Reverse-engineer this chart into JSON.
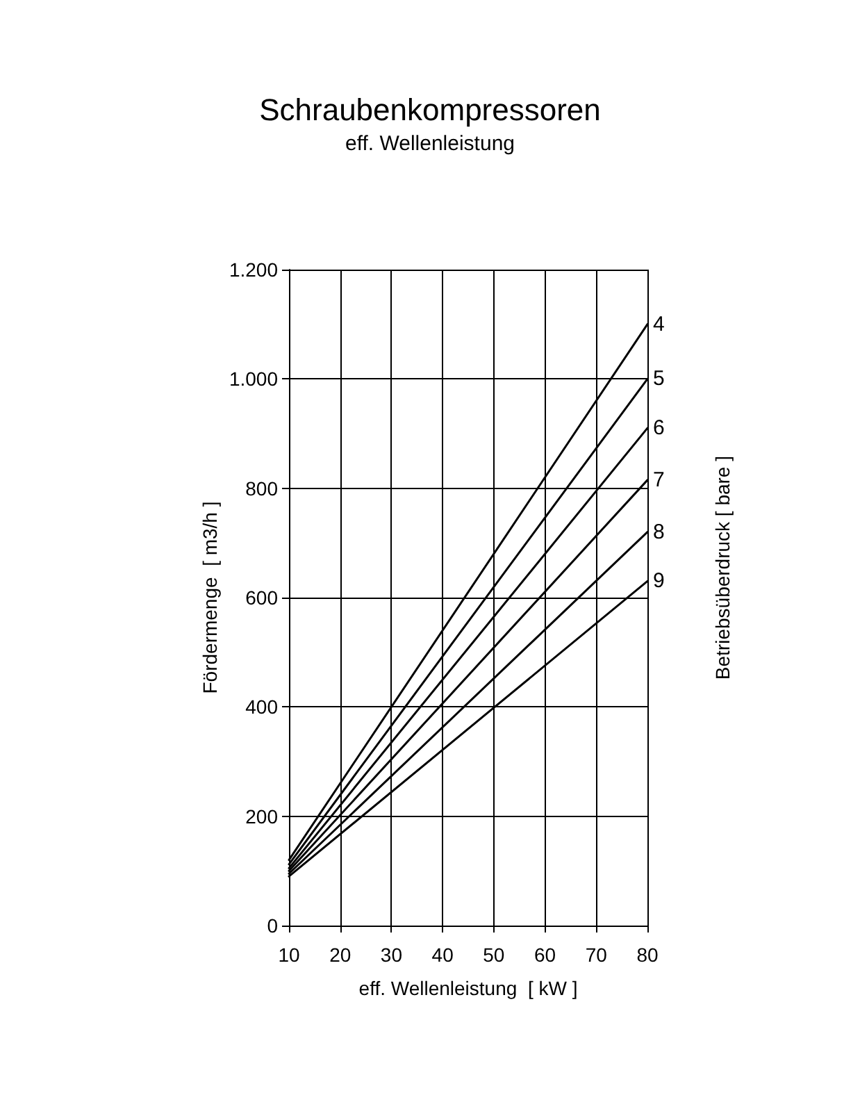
{
  "chart_data": {
    "type": "line",
    "title": "Schraubenkompressoren",
    "subtitle": "eff. Wellenleistung",
    "xlabel": "eff. Wellenleistung  [ kW ]",
    "ylabel": "Fördermenge  [ m3/h ]",
    "legend_title": "Betriebsüberdruck [ bare ]",
    "x": [
      10,
      80
    ],
    "series": [
      {
        "name": "4",
        "color": "#000000",
        "values": [
          120,
          1100
        ]
      },
      {
        "name": "5",
        "color": "#000000",
        "values": [
          112,
          1000
        ]
      },
      {
        "name": "6",
        "color": "#000000",
        "values": [
          105,
          910
        ]
      },
      {
        "name": "7",
        "color": "#000000",
        "values": [
          100,
          815
        ]
      },
      {
        "name": "8",
        "color": "#000000",
        "values": [
          95,
          720
        ]
      },
      {
        "name": "9",
        "color": "#000000",
        "values": [
          90,
          630
        ]
      }
    ],
    "xlim": [
      10,
      80
    ],
    "xticks": [
      10,
      20,
      30,
      40,
      50,
      60,
      70,
      80
    ],
    "ylim": [
      0,
      1200
    ],
    "yticks": [
      0,
      200,
      400,
      600,
      800,
      {
        "value": 1000,
        "label": "1.000"
      },
      {
        "value": 1200,
        "label": "1.200"
      }
    ],
    "grid": true,
    "legend": false,
    "marker": "none",
    "line_style": "solid"
  }
}
